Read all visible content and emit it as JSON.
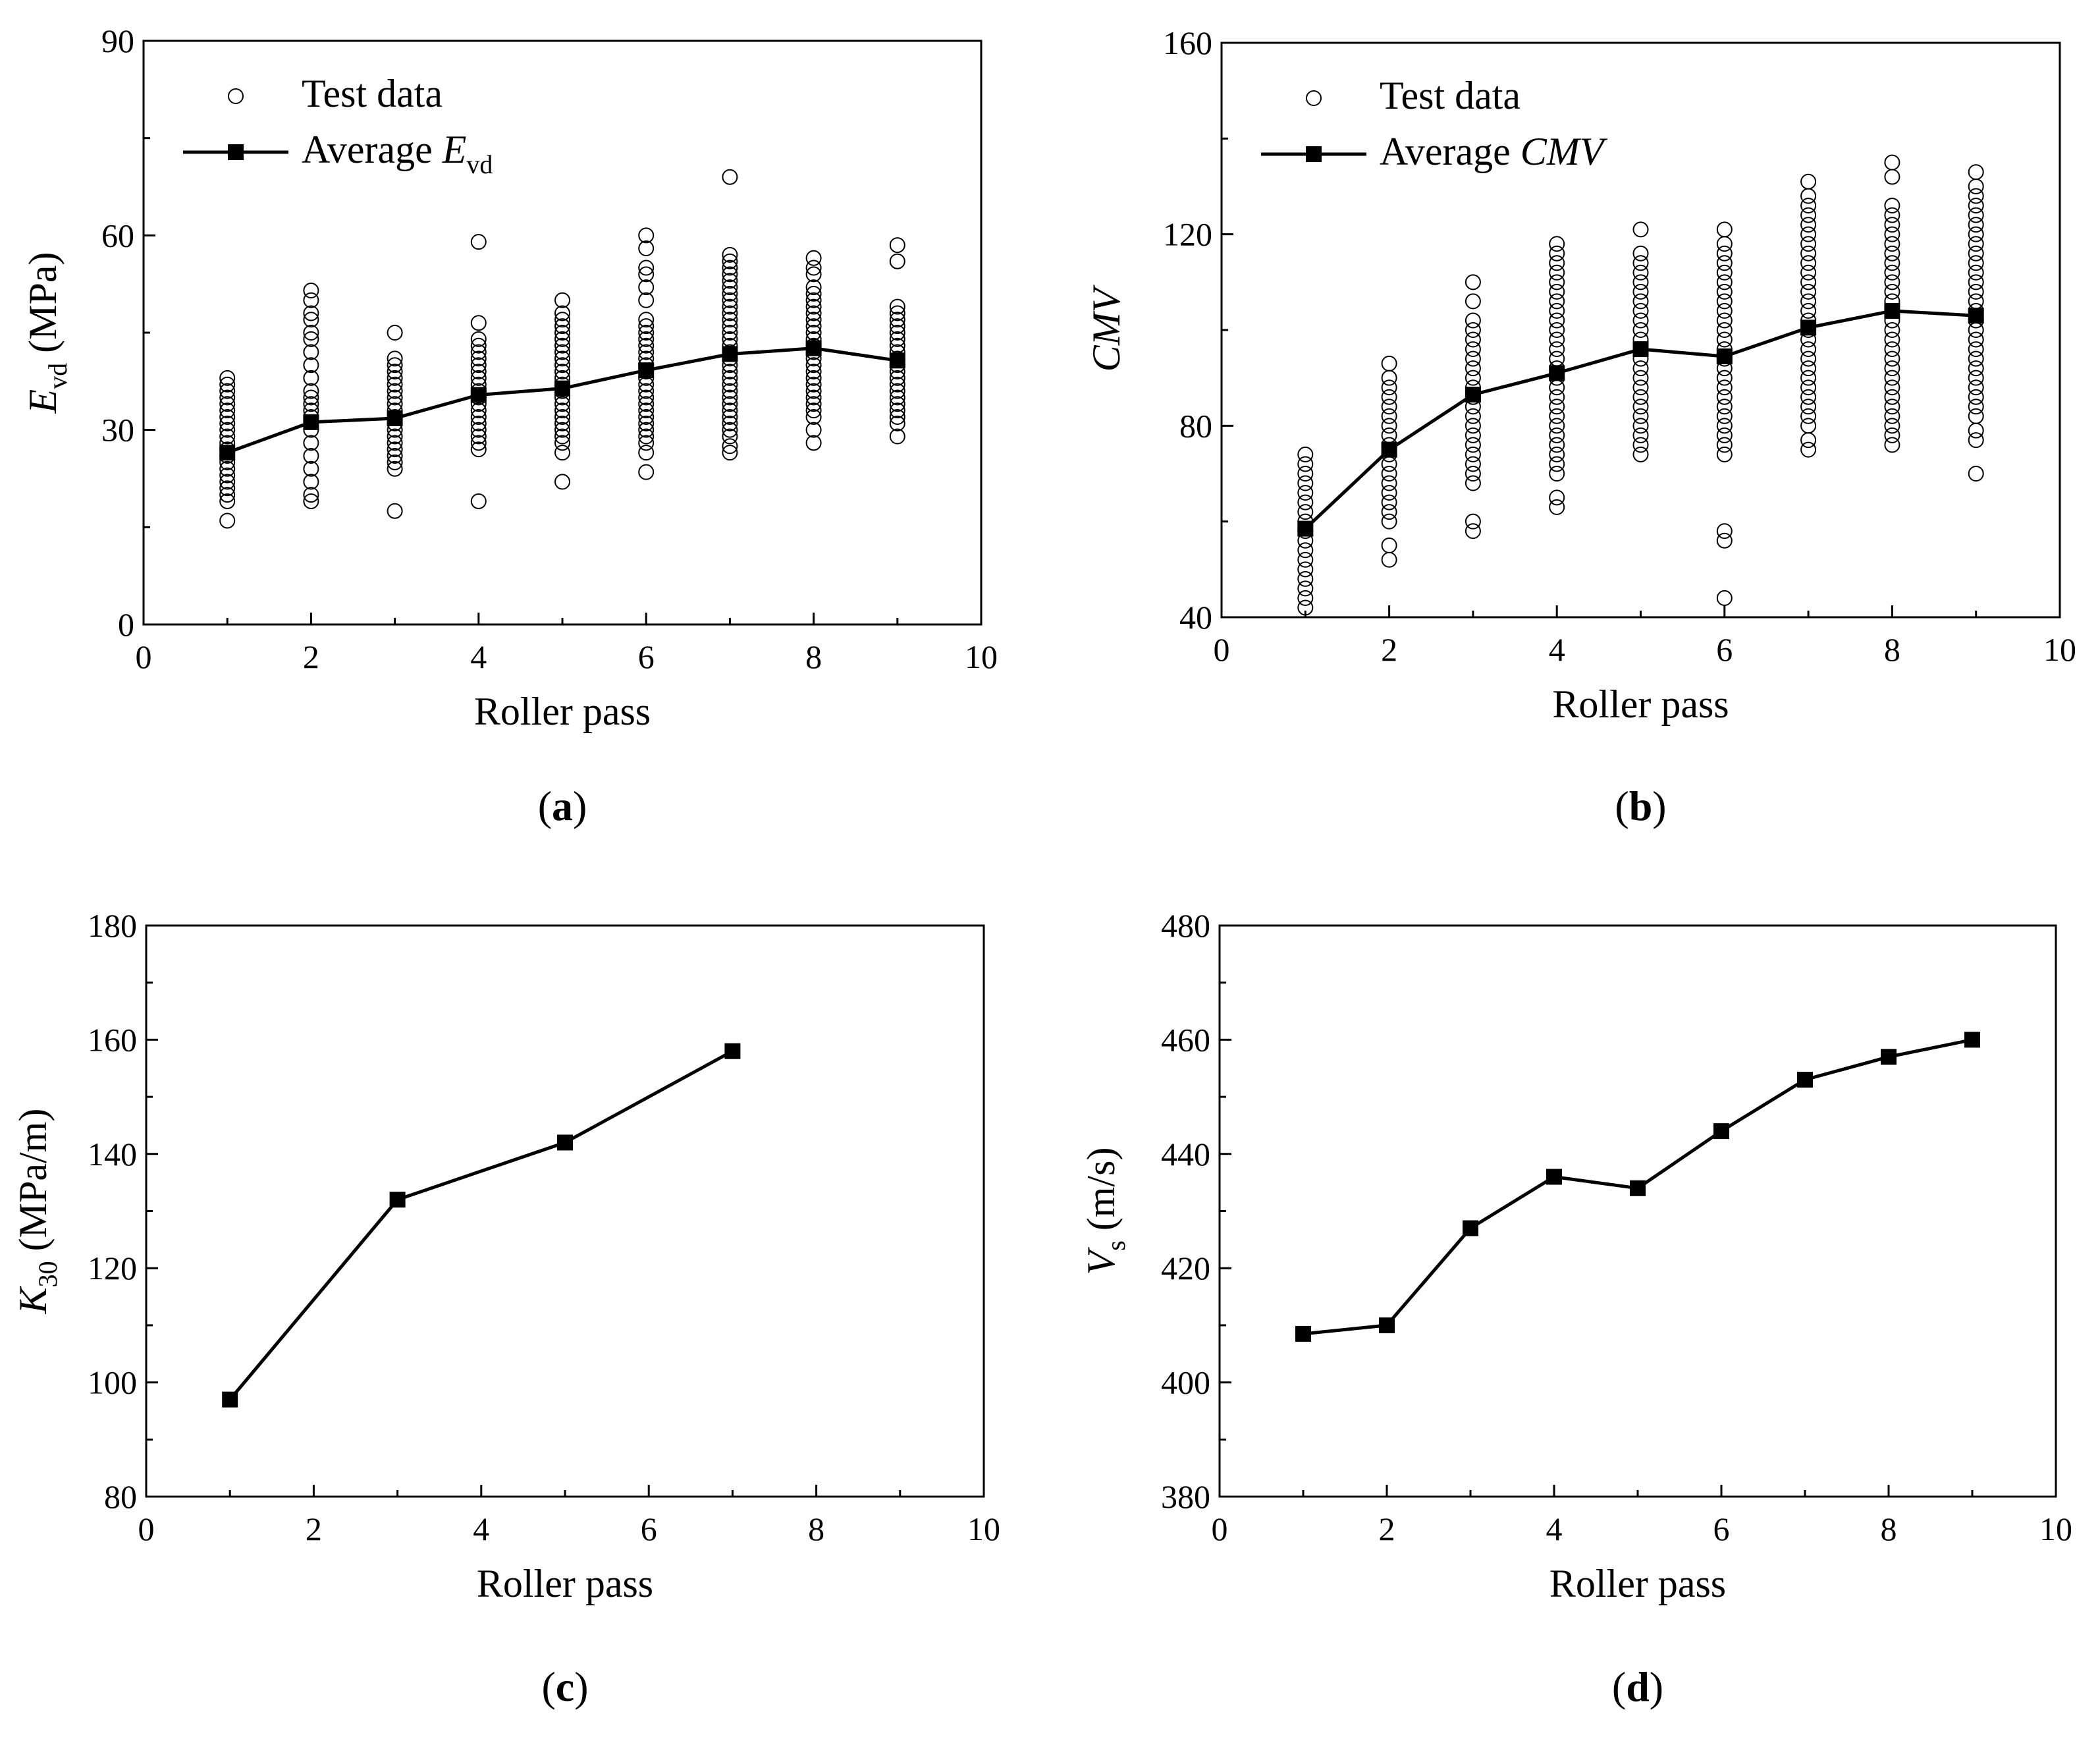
{
  "chart_data": [
    {
      "id": "a",
      "type": "scatter+line",
      "panel_label": "a",
      "xlabel": "Roller pass",
      "ylabel_main": "E",
      "ylabel_sub": "vd",
      "ylabel_unit": " (MPa)",
      "xlim": [
        0,
        10
      ],
      "ylim": [
        0,
        90
      ],
      "xticks": [
        0,
        2,
        4,
        6,
        8,
        10
      ],
      "yticks": [
        0,
        30,
        60,
        90
      ],
      "legend_position": "top-left",
      "legend": [
        {
          "kind": "scatter",
          "label": "Test data"
        },
        {
          "kind": "line",
          "label_main": "Average ",
          "label_var": "E",
          "label_sub": "vd"
        }
      ],
      "scatter": [
        {
          "x": 1,
          "y": [
            16,
            19,
            20,
            21,
            22,
            23,
            24,
            25,
            26,
            27,
            28,
            29,
            30,
            31,
            32,
            33,
            34,
            35,
            36,
            37,
            38
          ]
        },
        {
          "x": 2,
          "y": [
            19,
            20,
            22,
            24,
            26,
            28,
            30,
            32,
            33,
            34,
            35,
            36,
            38,
            40,
            42,
            44,
            45,
            47,
            48,
            50,
            51.5
          ]
        },
        {
          "x": 3,
          "y": [
            17.5,
            24,
            25,
            26,
            27,
            28,
            29,
            30,
            31,
            32,
            33,
            34,
            35,
            36,
            37,
            38,
            39,
            40,
            41,
            45
          ]
        },
        {
          "x": 4,
          "y": [
            19,
            27,
            28,
            29,
            30,
            31,
            32,
            33,
            34,
            35,
            36,
            37,
            38,
            39,
            40,
            41,
            42,
            43,
            44,
            46.5,
            59
          ]
        },
        {
          "x": 5,
          "y": [
            22,
            26.5,
            28,
            29,
            30,
            31,
            32,
            33,
            34,
            35,
            36,
            37,
            38,
            39,
            40,
            41,
            42,
            43,
            44,
            45,
            46,
            47,
            48,
            50
          ]
        },
        {
          "x": 6,
          "y": [
            23.5,
            26.5,
            28,
            29,
            30,
            31,
            32,
            33,
            34,
            35,
            36,
            37,
            38,
            39,
            40,
            41,
            42,
            43,
            44,
            45,
            46,
            47,
            50,
            52,
            54,
            55,
            58,
            60
          ]
        },
        {
          "x": 7,
          "y": [
            26.5,
            27.5,
            29,
            30,
            31,
            32,
            33,
            34,
            35,
            36,
            37,
            38,
            39,
            40,
            41,
            42,
            43,
            44,
            45,
            46,
            47,
            48,
            49,
            50,
            51,
            52,
            53,
            54,
            55,
            56,
            57,
            69
          ]
        },
        {
          "x": 8,
          "y": [
            28,
            30,
            32,
            33,
            34,
            35,
            36,
            37,
            38,
            39,
            40,
            41,
            42,
            43,
            44,
            45,
            46,
            47,
            48,
            49,
            50,
            51,
            52,
            54,
            55,
            56.5
          ]
        },
        {
          "x": 9,
          "y": [
            29,
            31,
            32,
            33,
            34,
            35,
            36,
            37,
            38,
            39,
            40,
            41,
            42,
            43,
            44,
            45,
            46,
            47,
            48,
            49,
            56,
            58.5
          ]
        }
      ],
      "series": [
        {
          "name": "Average Evd",
          "x": [
            1,
            2,
            3,
            4,
            5,
            6,
            7,
            8,
            9
          ],
          "values": [
            26.5,
            31.2,
            31.8,
            35.4,
            36.4,
            39.2,
            41.7,
            42.6,
            40.7
          ]
        }
      ]
    },
    {
      "id": "b",
      "type": "scatter+line",
      "panel_label": "b",
      "xlabel": "Roller pass",
      "ylabel_main": "CMV",
      "ylabel_sub": "",
      "ylabel_unit": "",
      "xlim": [
        0,
        10
      ],
      "ylim": [
        40,
        160
      ],
      "xticks": [
        0,
        2,
        4,
        6,
        8,
        10
      ],
      "yticks": [
        40,
        80,
        120,
        160
      ],
      "legend_position": "top-left",
      "legend": [
        {
          "kind": "scatter",
          "label": "Test data"
        },
        {
          "kind": "line",
          "label_main": "Average ",
          "label_var": "CMV",
          "label_sub": ""
        }
      ],
      "scatter": [
        {
          "x": 1,
          "y": [
            42,
            44,
            46,
            48,
            50,
            52,
            54,
            56,
            58,
            60,
            62,
            64,
            66,
            68,
            70,
            72,
            74
          ]
        },
        {
          "x": 2,
          "y": [
            52,
            55,
            60,
            62,
            64,
            66,
            68,
            70,
            72,
            74,
            76,
            78,
            80,
            82,
            84,
            86,
            88,
            90,
            93
          ]
        },
        {
          "x": 3,
          "y": [
            58,
            60,
            68,
            70,
            72,
            74,
            76,
            78,
            80,
            82,
            84,
            86,
            88,
            90,
            92,
            94,
            96,
            98,
            100,
            102,
            106,
            110
          ]
        },
        {
          "x": 4,
          "y": [
            63,
            65,
            70,
            72,
            74,
            76,
            78,
            80,
            82,
            84,
            86,
            88,
            90,
            92,
            94,
            96,
            98,
            100,
            102,
            104,
            106,
            108,
            110,
            112,
            114,
            116,
            118
          ]
        },
        {
          "x": 5,
          "y": [
            74,
            76,
            78,
            80,
            82,
            84,
            86,
            88,
            90,
            92,
            94,
            96,
            98,
            100,
            102,
            104,
            106,
            108,
            110,
            112,
            114,
            116,
            121
          ]
        },
        {
          "x": 6,
          "y": [
            44,
            56,
            58,
            74,
            76,
            78,
            80,
            82,
            84,
            86,
            88,
            90,
            92,
            94,
            96,
            98,
            100,
            102,
            104,
            106,
            108,
            110,
            112,
            114,
            116,
            118,
            121
          ]
        },
        {
          "x": 7,
          "y": [
            75,
            77,
            80,
            82,
            84,
            86,
            88,
            90,
            92,
            94,
            96,
            98,
            100,
            102,
            104,
            106,
            108,
            110,
            112,
            114,
            116,
            118,
            120,
            122,
            124,
            126,
            128,
            131
          ]
        },
        {
          "x": 8,
          "y": [
            76,
            78,
            80,
            82,
            84,
            86,
            88,
            90,
            92,
            94,
            96,
            98,
            100,
            102,
            104,
            106,
            108,
            110,
            112,
            114,
            116,
            118,
            120,
            122,
            124,
            126,
            132,
            135
          ]
        },
        {
          "x": 9,
          "y": [
            70,
            77,
            79,
            82,
            84,
            86,
            88,
            90,
            92,
            94,
            96,
            98,
            100,
            102,
            104,
            106,
            108,
            110,
            112,
            114,
            116,
            118,
            120,
            122,
            124,
            126,
            128,
            130,
            133
          ]
        }
      ],
      "series": [
        {
          "name": "Average CMV",
          "x": [
            1,
            2,
            3,
            4,
            5,
            6,
            7,
            8,
            9
          ],
          "values": [
            58.5,
            75,
            86.5,
            91,
            96,
            94.5,
            100.5,
            104,
            103
          ]
        }
      ]
    },
    {
      "id": "c",
      "type": "line",
      "panel_label": "c",
      "xlabel": "Roller pass",
      "ylabel_main": "K",
      "ylabel_sub": "30",
      "ylabel_unit": " (MPa/m)",
      "xlim": [
        0,
        10
      ],
      "ylim": [
        80,
        180
      ],
      "xticks": [
        0,
        2,
        4,
        6,
        8,
        10
      ],
      "yticks": [
        80,
        100,
        120,
        140,
        160,
        180
      ],
      "legend": [],
      "scatter": [],
      "series": [
        {
          "name": "K30",
          "x": [
            1,
            3,
            5,
            7
          ],
          "values": [
            97,
            132,
            142,
            158
          ]
        }
      ]
    },
    {
      "id": "d",
      "type": "line",
      "panel_label": "d",
      "xlabel": "Roller pass",
      "ylabel_main": "V",
      "ylabel_sub": "s",
      "ylabel_unit": " (m/s)",
      "xlim": [
        0,
        10
      ],
      "ylim": [
        380,
        480
      ],
      "xticks": [
        0,
        2,
        4,
        6,
        8,
        10
      ],
      "yticks": [
        380,
        400,
        420,
        440,
        460,
        480
      ],
      "legend": [],
      "scatter": [],
      "series": [
        {
          "name": "Vs",
          "x": [
            1,
            2,
            3,
            4,
            5,
            6,
            7,
            8,
            9
          ],
          "values": [
            408.5,
            410,
            427,
            436,
            434,
            444,
            453,
            457,
            460
          ]
        }
      ]
    }
  ]
}
